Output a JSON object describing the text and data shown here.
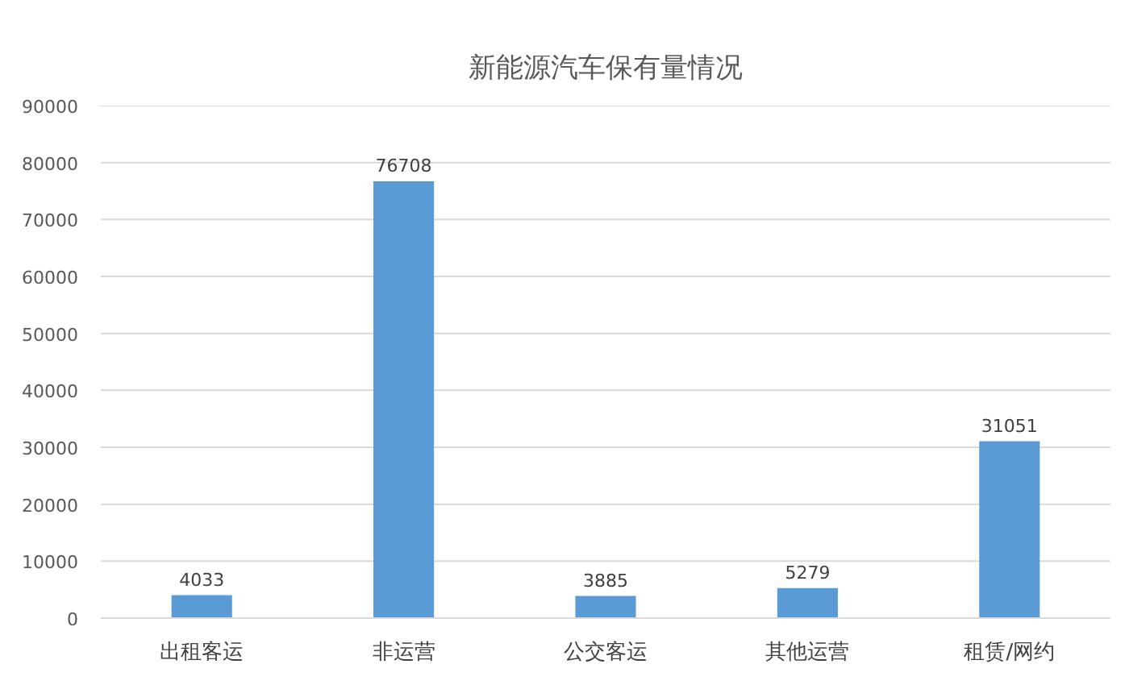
{
  "chart_data": {
    "type": "bar",
    "title": "新能源汽车保有量情况",
    "categories": [
      "出租客运",
      "非运营",
      "公交客运",
      "其他运营",
      "租赁/网约"
    ],
    "values": [
      4033,
      76708,
      3885,
      5279,
      31051
    ],
    "color": "#5b9bd5",
    "ylim": [
      0,
      90000
    ],
    "yticks": [
      0,
      10000,
      20000,
      30000,
      40000,
      50000,
      60000,
      70000,
      80000,
      90000
    ],
    "grid": "y",
    "data_labels": true
  }
}
